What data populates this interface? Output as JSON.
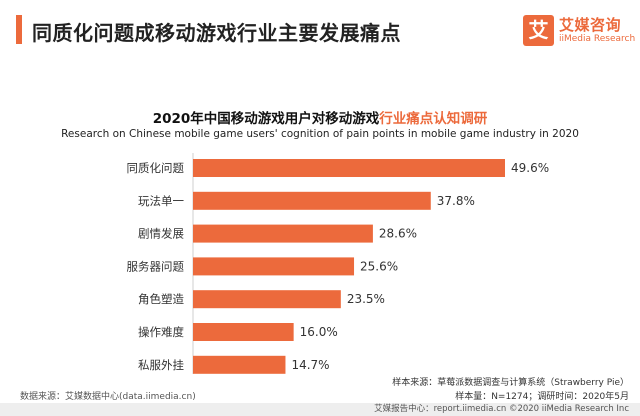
{
  "header": {
    "title": "同质化问题成移动游戏行业主要发展痛点"
  },
  "logo": {
    "mark": "艾",
    "name_cn": "艾媒咨询",
    "name_en": "iiMedia Research"
  },
  "chart_data": {
    "type": "bar",
    "orientation": "horizontal",
    "title_prefix": "2020年中国移动游戏用户对移动游戏",
    "title_highlight": "行业痛点认知调研",
    "subtitle": "Research on Chinese mobile game users' cognition of pain points in mobile game industry in 2020",
    "categories": [
      "同质化问题",
      "玩法单一",
      "剧情发展",
      "服务器问题",
      "角色塑造",
      "操作难度",
      "私服外挂"
    ],
    "values": [
      49.6,
      37.8,
      28.6,
      25.6,
      23.5,
      16.0,
      14.7
    ],
    "value_labels": [
      "49.6%",
      "37.8%",
      "28.6%",
      "25.6%",
      "23.5%",
      "16.0%",
      "14.7%"
    ],
    "xlim": [
      0,
      49.6
    ],
    "grid": false,
    "legend": "none",
    "bar_color": "#ec6a3c"
  },
  "sources": {
    "sample_source": "样本来源：草莓派数据调查与计算系统（Strawberry Pie）",
    "sample_info": "样本量：N=1274；调研时间：2020年5月",
    "data_source": "数据来源：艾媒数据中心(data.iimedia.cn)"
  },
  "footer": {
    "text": "艾媒报告中心：report.iimedia.cn  ©2020  iiMedia Research  Inc"
  }
}
